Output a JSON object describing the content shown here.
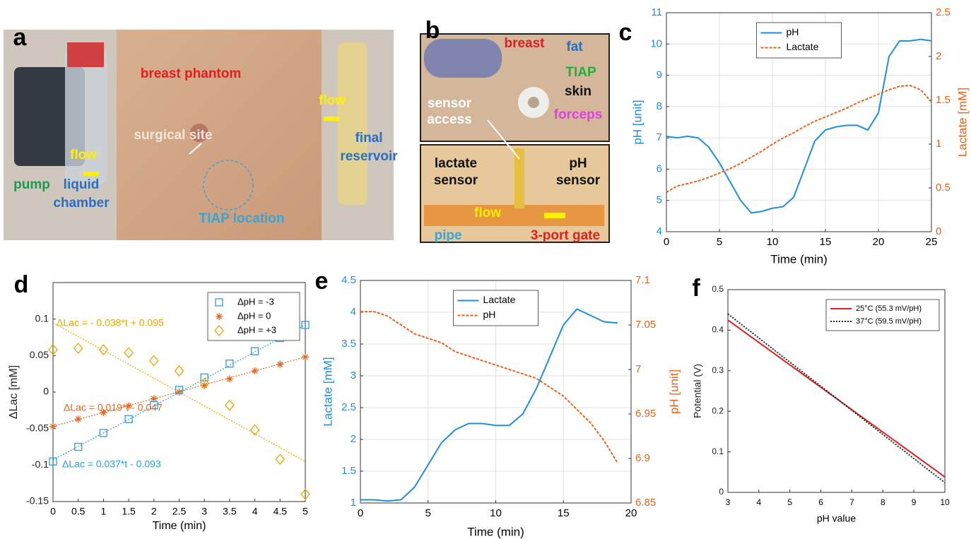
{
  "photo_panels": [
    {
      "panel": "a",
      "annotations": [
        {
          "text": "breast phantom",
          "color": "#e02020"
        },
        {
          "text": "surgical site",
          "color": "#f3e6da"
        },
        {
          "text": "flow",
          "color": "#fff000"
        },
        {
          "text": "flow",
          "color": "#fff000"
        },
        {
          "text": "pump",
          "color": "#1f9a4a"
        },
        {
          "text": "liquid",
          "color": "#2a70c0"
        },
        {
          "text": "chamber",
          "color": "#2a70c0"
        },
        {
          "text": "TIAP location",
          "color": "#35a6d6"
        },
        {
          "text": "final",
          "color": "#2a70c0"
        },
        {
          "text": "reservoir",
          "color": "#2a70c0"
        }
      ]
    },
    {
      "panel": "b",
      "annotations": [
        {
          "text": "breast",
          "color": "#e02020"
        },
        {
          "text": "fat",
          "color": "#2a70c0"
        },
        {
          "text": "TIAP",
          "color": "#20b040"
        },
        {
          "text": "skin",
          "color": "#111111"
        },
        {
          "text": "sensor",
          "color": "#ffffff"
        },
        {
          "text": "access",
          "color": "#ffffff"
        },
        {
          "text": "forceps",
          "color": "#e040e0"
        },
        {
          "text": "lactate",
          "color": "#111111"
        },
        {
          "text": "sensor",
          "color": "#111111"
        },
        {
          "text": "pH",
          "color": "#111111"
        },
        {
          "text": "sensor",
          "color": "#111111"
        },
        {
          "text": "flow",
          "color": "#fff000"
        },
        {
          "text": "pipe",
          "color": "#35a6d6"
        },
        {
          "text": "3-port gate",
          "color": "#e02020"
        }
      ]
    }
  ],
  "chart_data": [
    {
      "type": "line",
      "panel": "c",
      "xlabel": "Time (min)",
      "ylabel": "pH [unit]",
      "y2label": "Lactate [mM]",
      "y_axis_color": "#1f8fdc",
      "y2_axis_color": "#e8641c",
      "x": [
        0,
        1,
        2,
        3,
        4,
        5,
        6,
        7,
        8,
        9,
        10,
        11,
        12,
        13,
        14,
        15,
        16,
        17,
        18,
        19,
        20,
        21,
        22,
        23,
        24,
        25
      ],
      "series": [
        {
          "name": "pH",
          "color": "#1f8fdc",
          "style": "solid",
          "values": [
            7.05,
            7.0,
            7.05,
            7.0,
            6.7,
            6.2,
            5.6,
            5.0,
            4.6,
            4.65,
            4.75,
            4.8,
            5.1,
            6.0,
            6.9,
            7.25,
            7.35,
            7.4,
            7.4,
            7.25,
            7.8,
            9.6,
            10.1,
            10.1,
            10.15,
            10.1
          ]
        },
        {
          "name": "Lactate",
          "color": "#e8641c",
          "style": "dashed",
          "axis": "y2",
          "values": [
            0.45,
            0.52,
            0.55,
            0.58,
            0.62,
            0.67,
            0.72,
            0.78,
            0.85,
            0.92,
            1.0,
            1.07,
            1.13,
            1.2,
            1.26,
            1.31,
            1.36,
            1.41,
            1.47,
            1.52,
            1.57,
            1.62,
            1.66,
            1.67,
            1.62,
            1.48
          ]
        }
      ],
      "xlim": [
        0,
        25
      ],
      "xticks": [
        0,
        5,
        10,
        15,
        20,
        25
      ],
      "ylim": [
        4,
        11
      ],
      "yticks": [
        4,
        5,
        6,
        7,
        8,
        9,
        10,
        11
      ],
      "y2lim": [
        0,
        2.5
      ],
      "y2ticks": [
        0,
        0.5,
        1,
        1.5,
        2,
        2.5
      ],
      "grid": true,
      "legend": "upper center"
    },
    {
      "type": "scatter",
      "panel": "d",
      "xlabel": "Time (min)",
      "ylabel": "ΔLac [mM]",
      "x": [
        0,
        0.5,
        1,
        1.5,
        2,
        2.5,
        3,
        3.5,
        4,
        4.5,
        5
      ],
      "series": [
        {
          "name": "ΔpH = -3",
          "color": "#2a9fe0",
          "marker": "square",
          "values": [
            -0.095,
            -0.075,
            -0.056,
            -0.037,
            -0.018,
            0.003,
            0.02,
            0.039,
            0.056,
            0.074,
            0.092
          ],
          "fit_x": [
            0,
            5
          ],
          "fit_values": [
            -0.093,
            0.092
          ]
        },
        {
          "name": "ΔpH = 0",
          "color": "#e8641c",
          "marker": "asterisk",
          "values": [
            -0.047,
            -0.037,
            -0.028,
            -0.019,
            -0.009,
            0.0,
            0.009,
            0.018,
            0.029,
            0.038,
            0.048
          ],
          "fit_x": [
            0,
            5
          ],
          "fit_values": [
            -0.047,
            0.048
          ]
        },
        {
          "name": "ΔpH = +3",
          "color": "#e8a800",
          "marker": "diamond",
          "values": [
            0.058,
            0.06,
            0.058,
            0.054,
            0.043,
            0.029,
            0.012,
            -0.018,
            -0.052,
            -0.092,
            -0.14
          ],
          "fit_x": [
            0,
            5
          ],
          "fit_values": [
            0.095,
            -0.095
          ]
        }
      ],
      "annotations": [
        {
          "text": "ΔLac = - 0.038*t + 0.095",
          "color": "#e8a800"
        },
        {
          "text": "ΔLac = 0.019*t - 0.047",
          "color": "#e8641c"
        },
        {
          "text": "ΔLac = 0.037*t - 0.093",
          "color": "#2a9fe0"
        }
      ],
      "xlim": [
        0,
        5
      ],
      "xticks": [
        0,
        0.5,
        1,
        1.5,
        2,
        2.5,
        3,
        3.5,
        4,
        4.5,
        5
      ],
      "ylim": [
        -0.15,
        0.15
      ],
      "yticks": [
        -0.15,
        -0.1,
        -0.05,
        0,
        0.05,
        0.1
      ],
      "grid": false,
      "legend": "upper right"
    },
    {
      "type": "line",
      "panel": "e",
      "xlabel": "Time (min)",
      "ylabel": "Lactate [mM]",
      "y2label": "pH [unit]",
      "y_axis_color": "#1f8fdc",
      "y2_axis_color": "#e8641c",
      "x": [
        0,
        1,
        2,
        3,
        4,
        5,
        6,
        7,
        8,
        9,
        10,
        11,
        12,
        13,
        14,
        15,
        16,
        17,
        18,
        19
      ],
      "series": [
        {
          "name": "Lactate",
          "color": "#1f8fdc",
          "style": "solid",
          "values": [
            1.05,
            1.05,
            1.03,
            1.05,
            1.25,
            1.6,
            1.95,
            2.15,
            2.25,
            2.25,
            2.22,
            2.22,
            2.4,
            2.8,
            3.3,
            3.8,
            4.05,
            3.95,
            3.85,
            3.83
          ]
        },
        {
          "name": "pH",
          "color": "#e8641c",
          "style": "dashed",
          "axis": "y2",
          "values": [
            7.065,
            7.065,
            7.06,
            7.05,
            7.04,
            7.035,
            7.03,
            7.02,
            7.015,
            7.01,
            7.005,
            7.0,
            6.995,
            6.99,
            6.98,
            6.97,
            6.955,
            6.94,
            6.92,
            6.895
          ]
        }
      ],
      "xlim": [
        0,
        20
      ],
      "xticks": [
        0,
        5,
        10,
        15,
        20
      ],
      "ylim": [
        1,
        4.5
      ],
      "yticks": [
        1,
        1.5,
        2,
        2.5,
        3,
        3.5,
        4,
        4.5
      ],
      "y2lim": [
        6.85,
        7.1
      ],
      "y2ticks": [
        6.85,
        6.9,
        6.95,
        7,
        7.05,
        7.1
      ],
      "grid": true,
      "legend": "upper center"
    },
    {
      "type": "line",
      "panel": "f",
      "xlabel": "pH value",
      "ylabel": "Potential (V)",
      "x": [
        3,
        10
      ],
      "series": [
        {
          "name": "25°C (55.3 mV/pH)",
          "color": "#e02020",
          "style": "solid",
          "values": [
            0.425,
            0.038
          ]
        },
        {
          "name": "37°C (59.5 mV/pH)",
          "color": "#222222",
          "style": "dotted",
          "values": [
            0.44,
            0.024
          ]
        }
      ],
      "xlim": [
        3,
        10
      ],
      "xticks": [
        3,
        4,
        5,
        6,
        7,
        8,
        9,
        10
      ],
      "ylim": [
        0,
        0.5
      ],
      "yticks": [
        0,
        0.1,
        0.2,
        0.3,
        0.4,
        0.5
      ],
      "grid": false,
      "legend": "upper right"
    }
  ]
}
